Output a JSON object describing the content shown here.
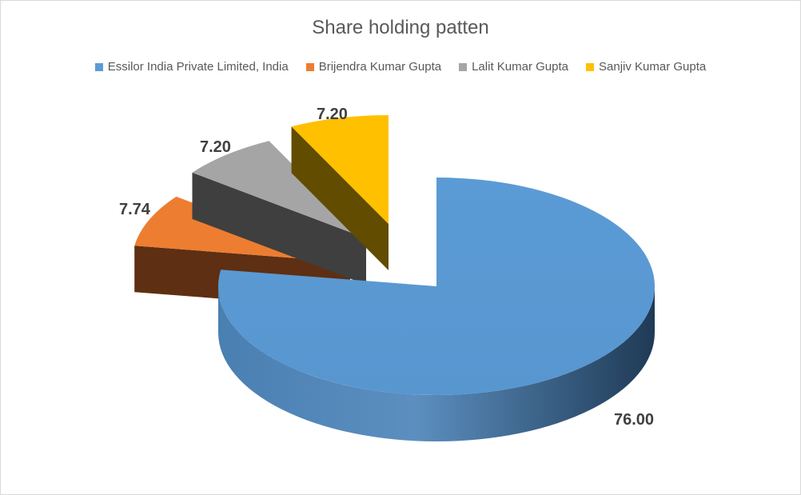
{
  "chart_data": {
    "type": "pie",
    "title": "Share holding patten",
    "series": [
      {
        "name": "Essilor India Private Limited, India",
        "value": 76.0,
        "label": "76.00",
        "color": "#5B9BD5"
      },
      {
        "name": "Brijendra Kumar Gupta",
        "value": 7.74,
        "label": "7.74",
        "color": "#ED7D31"
      },
      {
        "name": "Lalit Kumar Gupta",
        "value": 7.2,
        "label": "7.20",
        "color": "#A5A5A5"
      },
      {
        "name": "Sanjiv Kumar Gupta",
        "value": 7.2,
        "label": "7.20",
        "color": "#FFC000"
      }
    ],
    "legend_position": "top",
    "style": "3d-exploded"
  }
}
